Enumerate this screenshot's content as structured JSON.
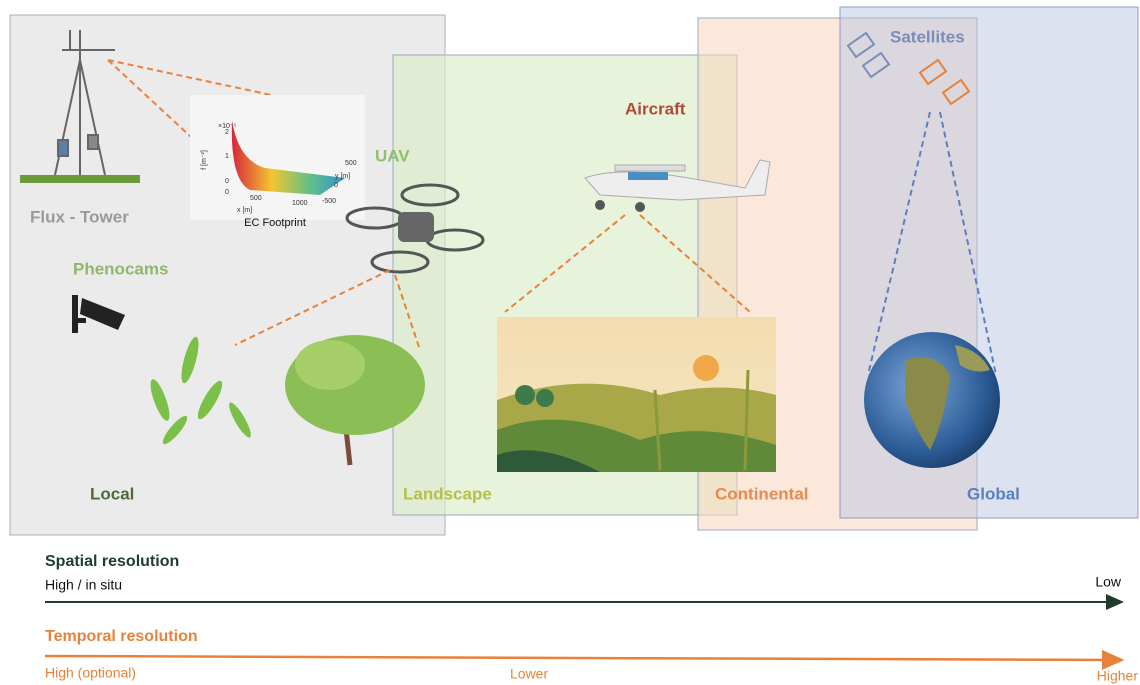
{
  "scales": {
    "local": "Local",
    "landscape": "Landscape",
    "continental": "Continental",
    "global": "Global"
  },
  "platforms": {
    "flux_tower": "Flux - Tower",
    "phenocams": "Phenocams",
    "uav": "UAV",
    "aircraft": "Aircraft",
    "satellites": "Satellites"
  },
  "footprint": {
    "caption": "EC Footprint",
    "f_label": "f [m⁻²]",
    "x_label": "x [m]",
    "y_label": "y [m]",
    "scale": "×10⁻⁵",
    "f_ticks": [
      "0",
      "1",
      "2"
    ],
    "x_ticks": [
      "0",
      "500",
      "1000"
    ],
    "y_ticks": [
      "500",
      "0",
      "-500"
    ]
  },
  "spatial": {
    "title": "Spatial resolution",
    "start": "High / in situ",
    "end": "Low"
  },
  "temporal": {
    "title": "Temporal resolution",
    "start": "High (optional)",
    "middle": "Lower",
    "end": "Higher"
  }
}
